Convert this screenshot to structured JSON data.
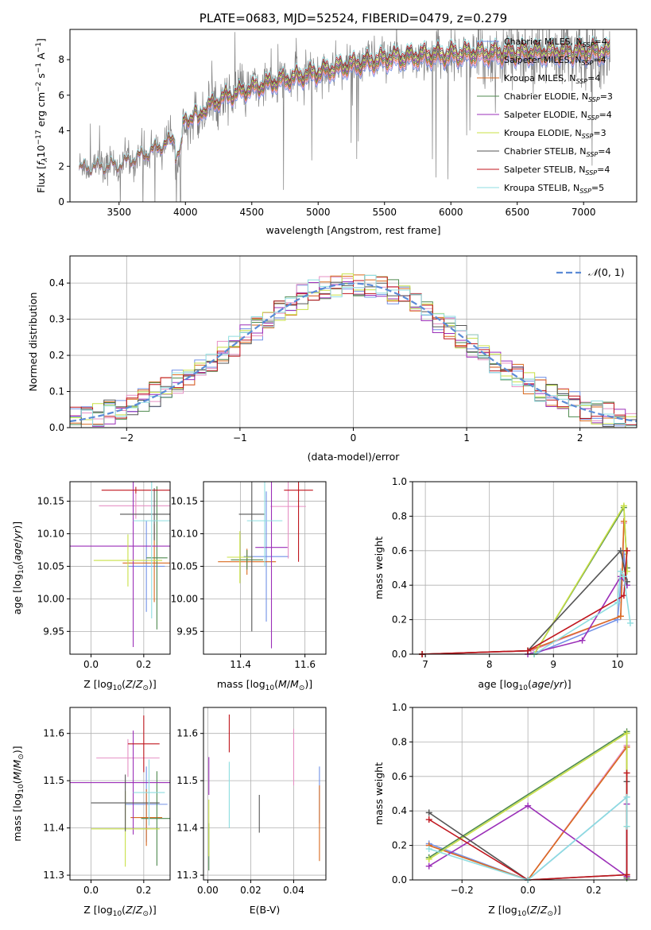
{
  "figure_title": "PLATE=0683, MJD=52524, FIBERID=0479, z=0.279",
  "colors": {
    "Chabrier MILES": "#7291e6",
    "Salpeter MILES": "#e690c4",
    "Kroupa MILES": "#d96a1f",
    "Chabrier ELODIE": "#4f8a4f",
    "Salpeter ELODIE": "#9b2fb8",
    "Kroupa ELODIE": "#c8e045",
    "Chabrier STELIB": "#555555",
    "Salpeter STELIB": "#c0161e",
    "Kroupa STELIB": "#8edde0",
    "data": "#808080",
    "normal": "#5b8bd6"
  },
  "chart_data": [
    {
      "id": "spectrum",
      "type": "line",
      "title": "PLATE=0683, MJD=52524, FIBERID=0479, z=0.279",
      "xlabel": "wavelength [Angstrom, rest frame]",
      "ylabel": "Flux [f_λ 10^-17 erg cm^-2 s^-1 A^-1]",
      "xlim": [
        3130,
        7400
      ],
      "ylim": [
        0,
        9.7
      ],
      "xticks": [
        3500,
        4000,
        4500,
        5000,
        5500,
        6000,
        6500,
        7000
      ],
      "yticks": [
        0,
        2,
        4,
        6,
        8
      ],
      "grid": false,
      "legend_placement": "top-right",
      "continuum_x": [
        3200,
        3500,
        3700,
        3900,
        4000,
        4300,
        4600,
        4900,
        5200,
        5500,
        5800,
        6100,
        6500,
        6900,
        7200
      ],
      "continuum_y": [
        1.9,
        2.1,
        2.7,
        3.5,
        4.6,
        5.9,
        6.6,
        7.1,
        7.6,
        8.0,
        8.2,
        8.3,
        8.35,
        8.4,
        8.45
      ],
      "series": [
        {
          "name": "Chabrier MILES, N_SSP=4"
        },
        {
          "name": "Salpeter MILES, N_SSP=4"
        },
        {
          "name": "Kroupa MILES, N_SSP=4"
        },
        {
          "name": "Chabrier ELODIE, N_SSP=3"
        },
        {
          "name": "Salpeter ELODIE, N_SSP=4"
        },
        {
          "name": "Kroupa ELODIE, N_SSP=3"
        },
        {
          "name": "Chabrier STELIB, N_SSP=4"
        },
        {
          "name": "Salpeter STELIB, N_SSP=4"
        },
        {
          "name": "Kroupa STELIB, N_SSP=5"
        }
      ]
    },
    {
      "id": "residuals",
      "type": "line",
      "xlabel": "(data-model)/error",
      "ylabel": "Normed distribution",
      "xlim": [
        -2.5,
        2.5
      ],
      "ylim": [
        0,
        0.475
      ],
      "xticks": [
        -2,
        -1,
        0,
        1,
        2
      ],
      "yticks": [
        0.0,
        0.1,
        0.2,
        0.3,
        0.4
      ],
      "grid": true,
      "legend_placement": "top-right",
      "legend": "N(0,1)",
      "bin_width": 0.1
    },
    {
      "id": "age_vs_Z",
      "type": "scatter",
      "xlabel": "Z [log10(Z/Z⊙)]",
      "ylabel": "age [log10(age/yr)]",
      "xlim": [
        -0.08,
        0.3
      ],
      "ylim": [
        9.915,
        10.18
      ],
      "xticks": [
        0.0,
        0.2
      ],
      "yticks": [
        9.95,
        10.0,
        10.05,
        10.1,
        10.15
      ],
      "grid": true,
      "points": [
        {
          "series": "Chabrier MILES",
          "x": 0.21,
          "y": 10.05,
          "xerr": 0.07,
          "yerr": 0.07
        },
        {
          "series": "Salpeter MILES",
          "x": 0.17,
          "y": 10.143,
          "xerr": 0.14,
          "yerr": 0.02
        },
        {
          "series": "Kroupa MILES",
          "x": 0.24,
          "y": 10.055,
          "xerr": 0.12,
          "yerr": 0.06
        },
        {
          "series": "Chabrier ELODIE",
          "x": 0.25,
          "y": 10.063,
          "xerr": 0.04,
          "yerr": 0.11
        },
        {
          "series": "Salpeter ELODIE",
          "x": 0.16,
          "y": 10.081,
          "xerr": 0.28,
          "yerr": 0.155
        },
        {
          "series": "Kroupa ELODIE",
          "x": 0.14,
          "y": 10.059,
          "xerr": 0.13,
          "yerr": 0.04
        },
        {
          "series": "Chabrier STELIB",
          "x": 0.24,
          "y": 10.13,
          "xerr": 0.13,
          "yerr": 0.04
        },
        {
          "series": "Salpeter STELIB",
          "x": 0.17,
          "y": 10.167,
          "xerr": 0.13,
          "yerr": 0.005
        },
        {
          "series": "Kroupa STELIB",
          "x": 0.23,
          "y": 10.12,
          "xerr": 0.07,
          "yerr": 0.15
        }
      ]
    },
    {
      "id": "age_vs_mass",
      "type": "scatter",
      "xlabel": "mass [log10(M/M⊙)]",
      "ylabel": "",
      "xlim": [
        11.285,
        11.665
      ],
      "ylim": [
        9.915,
        10.18
      ],
      "xticks": [
        11.4,
        11.6
      ],
      "yticks": [
        9.95,
        10.0,
        10.05,
        10.1,
        10.15
      ],
      "grid": true,
      "points": [
        {
          "series": "Chabrier MILES",
          "x": 11.48,
          "y": 10.065,
          "xerr": 0.07,
          "yerr": 0.1
        },
        {
          "series": "Salpeter MILES",
          "x": 11.548,
          "y": 10.142,
          "xerr": 0.055,
          "yerr": 0.08
        },
        {
          "series": "Kroupa MILES",
          "x": 11.42,
          "y": 10.057,
          "xerr": 0.09,
          "yerr": 0.02
        },
        {
          "series": "Chabrier ELODIE",
          "x": 11.42,
          "y": 10.06,
          "xerr": 0.05,
          "yerr": 0.015
        },
        {
          "series": "Salpeter ELODIE",
          "x": 11.496,
          "y": 10.079,
          "xerr": 0.05,
          "yerr": 0.155
        },
        {
          "series": "Kroupa ELODIE",
          "x": 11.398,
          "y": 10.064,
          "xerr": 0.04,
          "yerr": 0.04
        },
        {
          "series": "Chabrier STELIB",
          "x": 11.435,
          "y": 10.13,
          "xerr": 0.04,
          "yerr": 0.18
        },
        {
          "series": "Salpeter STELIB",
          "x": 11.58,
          "y": 10.167,
          "xerr": 0.045,
          "yerr": 0.11
        },
        {
          "series": "Kroupa STELIB",
          "x": 11.475,
          "y": 10.12,
          "xerr": 0.055,
          "yerr": 0.07
        }
      ]
    },
    {
      "id": "mass_weight_vs_age",
      "type": "line",
      "xlabel": "age [log10(age/yr)]",
      "ylabel": "mass weight",
      "xlim": [
        6.8,
        10.3
      ],
      "ylim": [
        0,
        1.0
      ],
      "xticks": [
        7,
        8,
        9,
        10
      ],
      "yticks": [
        0.0,
        0.2,
        0.4,
        0.6,
        0.8,
        1.0
      ],
      "grid": true,
      "series": [
        {
          "series": "Chabrier MILES",
          "x": [
            8.7,
            10.0,
            10.1,
            10.15
          ],
          "y": [
            0.0,
            0.2,
            0.58,
            0.4
          ]
        },
        {
          "series": "Salpeter MILES",
          "x": [
            6.95,
            8.65,
            10.05,
            10.1
          ],
          "y": [
            0.0,
            0.02,
            0.22,
            0.76
          ]
        },
        {
          "series": "Kroupa MILES",
          "x": [
            6.95,
            8.6,
            10.05,
            10.1
          ],
          "y": [
            0.0,
            0.02,
            0.22,
            0.77
          ]
        },
        {
          "series": "Chabrier ELODIE",
          "x": [
            8.7,
            10.1,
            10.15
          ],
          "y": [
            0.0,
            0.85,
            0.5
          ]
        },
        {
          "series": "Salpeter ELODIE",
          "x": [
            8.6,
            9.45,
            10.05,
            10.15
          ],
          "y": [
            0.0,
            0.08,
            0.45,
            0.4
          ]
        },
        {
          "series": "Kroupa ELODIE",
          "x": [
            8.7,
            10.1,
            10.15
          ],
          "y": [
            0.0,
            0.86,
            0.48
          ]
        },
        {
          "series": "Chabrier STELIB",
          "x": [
            6.95,
            8.6,
            10.05,
            10.15
          ],
          "y": [
            0.0,
            0.02,
            0.6,
            0.42
          ]
        },
        {
          "series": "Salpeter STELIB",
          "x": [
            6.95,
            8.6,
            10.1,
            10.15
          ],
          "y": [
            0.0,
            0.02,
            0.34,
            0.6
          ]
        },
        {
          "series": "Kroupa STELIB",
          "x": [
            8.7,
            10.0,
            10.05,
            10.1,
            10.2
          ],
          "y": [
            0.0,
            0.3,
            0.48,
            0.45,
            0.18
          ]
        }
      ]
    },
    {
      "id": "mass_vs_Z",
      "type": "scatter",
      "xlabel": "Z [log10(Z/Z⊙)]",
      "ylabel": "mass [log10(M/M⊙)]",
      "xlim": [
        -0.08,
        0.3
      ],
      "ylim": [
        11.29,
        11.655
      ],
      "xticks": [
        0.0,
        0.2
      ],
      "yticks": [
        11.3,
        11.4,
        11.5,
        11.6
      ],
      "grid": true,
      "points": [
        {
          "series": "Chabrier MILES",
          "x": 0.21,
          "y": 11.45,
          "xerr": 0.08,
          "yerr": 0.08
        },
        {
          "series": "Salpeter MILES",
          "x": 0.14,
          "y": 11.548,
          "xerr": 0.12,
          "yerr": 0.04
        },
        {
          "series": "Kroupa MILES",
          "x": 0.21,
          "y": 11.422,
          "xerr": 0.06,
          "yerr": 0.06
        },
        {
          "series": "Chabrier ELODIE",
          "x": 0.25,
          "y": 11.42,
          "xerr": 0.06,
          "yerr": 0.1
        },
        {
          "series": "Salpeter ELODIE",
          "x": 0.16,
          "y": 11.496,
          "xerr": 0.24,
          "yerr": 0.11
        },
        {
          "series": "Kroupa ELODIE",
          "x": 0.13,
          "y": 11.398,
          "xerr": 0.13,
          "yerr": 0.08
        },
        {
          "series": "Chabrier STELIB",
          "x": 0.13,
          "y": 11.453,
          "xerr": 0.13,
          "yerr": 0.06
        },
        {
          "series": "Salpeter STELIB",
          "x": 0.2,
          "y": 11.578,
          "xerr": 0.06,
          "yerr": 0.06
        },
        {
          "series": "Kroupa STELIB",
          "x": 0.22,
          "y": 11.475,
          "xerr": 0.06,
          "yerr": 0.07
        }
      ]
    },
    {
      "id": "mass_vs_ebv",
      "type": "scatter",
      "xlabel": "E(B-V)",
      "ylabel": "",
      "xlim": [
        -0.002,
        0.055
      ],
      "ylim": [
        11.29,
        11.655
      ],
      "xticks": [
        0.0,
        0.02,
        0.04
      ],
      "yticks": [
        11.3,
        11.4,
        11.5,
        11.6
      ],
      "grid": true,
      "points": [
        {
          "series": "Chabrier MILES",
          "x": 0.052,
          "y": 11.47,
          "xerr": 0,
          "yerr": 0.06
        },
        {
          "series": "Salpeter MILES",
          "x": 0.04,
          "y": 11.55,
          "xerr": 0,
          "yerr": 0.06
        },
        {
          "series": "Kroupa MILES",
          "x": 0.052,
          "y": 11.41,
          "xerr": 0,
          "yerr": 0.08
        },
        {
          "series": "Chabrier ELODIE",
          "x": 0.0005,
          "y": 11.36,
          "xerr": 0,
          "yerr": 0.05
        },
        {
          "series": "Salpeter ELODIE",
          "x": 0.0005,
          "y": 11.51,
          "xerr": 0,
          "yerr": 0.04
        },
        {
          "series": "Kroupa ELODIE",
          "x": 0.0005,
          "y": 11.4,
          "xerr": 0,
          "yerr": 0.06
        },
        {
          "series": "Chabrier STELIB",
          "x": 0.024,
          "y": 11.43,
          "xerr": 0,
          "yerr": 0.04
        },
        {
          "series": "Salpeter STELIB",
          "x": 0.01,
          "y": 11.6,
          "xerr": 0,
          "yerr": 0.04
        },
        {
          "series": "Kroupa STELIB",
          "x": 0.01,
          "y": 11.47,
          "xerr": 0,
          "yerr": 0.07
        }
      ]
    },
    {
      "id": "mass_weight_vs_Z",
      "type": "line",
      "xlabel": "Z [log10(Z/Z⊙)]",
      "ylabel": "mass weight",
      "xlim": [
        -0.35,
        0.33
      ],
      "ylim": [
        0,
        1.0
      ],
      "xticks": [
        -0.2,
        0.0,
        0.2
      ],
      "yticks": [
        0.0,
        0.2,
        0.4,
        0.6,
        0.8,
        1.0
      ],
      "grid": true,
      "series": [
        {
          "series": "Chabrier MILES",
          "x": [
            -0.3,
            0.0,
            0.3,
            0.3
          ],
          "y": [
            0.21,
            0.0,
            0.48,
            0.02
          ]
        },
        {
          "series": "Salpeter MILES",
          "x": [
            -0.3,
            0.0,
            0.3,
            0.3
          ],
          "y": [
            0.2,
            0.0,
            0.78,
            0.02
          ]
        },
        {
          "series": "Kroupa MILES",
          "x": [
            -0.3,
            0.0,
            0.3,
            0.3
          ],
          "y": [
            0.2,
            0.0,
            0.77,
            0.02
          ]
        },
        {
          "series": "Chabrier ELODIE",
          "x": [
            -0.3,
            0.3,
            0.3
          ],
          "y": [
            0.13,
            0.86,
            0.01
          ]
        },
        {
          "series": "Salpeter ELODIE",
          "x": [
            -0.3,
            0.0,
            0.3,
            0.3
          ],
          "y": [
            0.08,
            0.43,
            0.02,
            0.44
          ]
        },
        {
          "series": "Kroupa ELODIE",
          "x": [
            -0.3,
            0.3,
            0.3
          ],
          "y": [
            0.12,
            0.85,
            0.31
          ]
        },
        {
          "series": "Chabrier STELIB",
          "x": [
            -0.3,
            0.0,
            0.3,
            0.3
          ],
          "y": [
            0.39,
            0.0,
            0.03,
            0.57
          ]
        },
        {
          "series": "Salpeter STELIB",
          "x": [
            -0.3,
            0.0,
            0.3,
            0.3
          ],
          "y": [
            0.35,
            0.0,
            0.03,
            0.62
          ]
        },
        {
          "series": "Kroupa STELIB",
          "x": [
            -0.3,
            0.0,
            0.3,
            0.3
          ],
          "y": [
            0.18,
            0.0,
            0.48,
            0.31
          ]
        }
      ]
    }
  ]
}
